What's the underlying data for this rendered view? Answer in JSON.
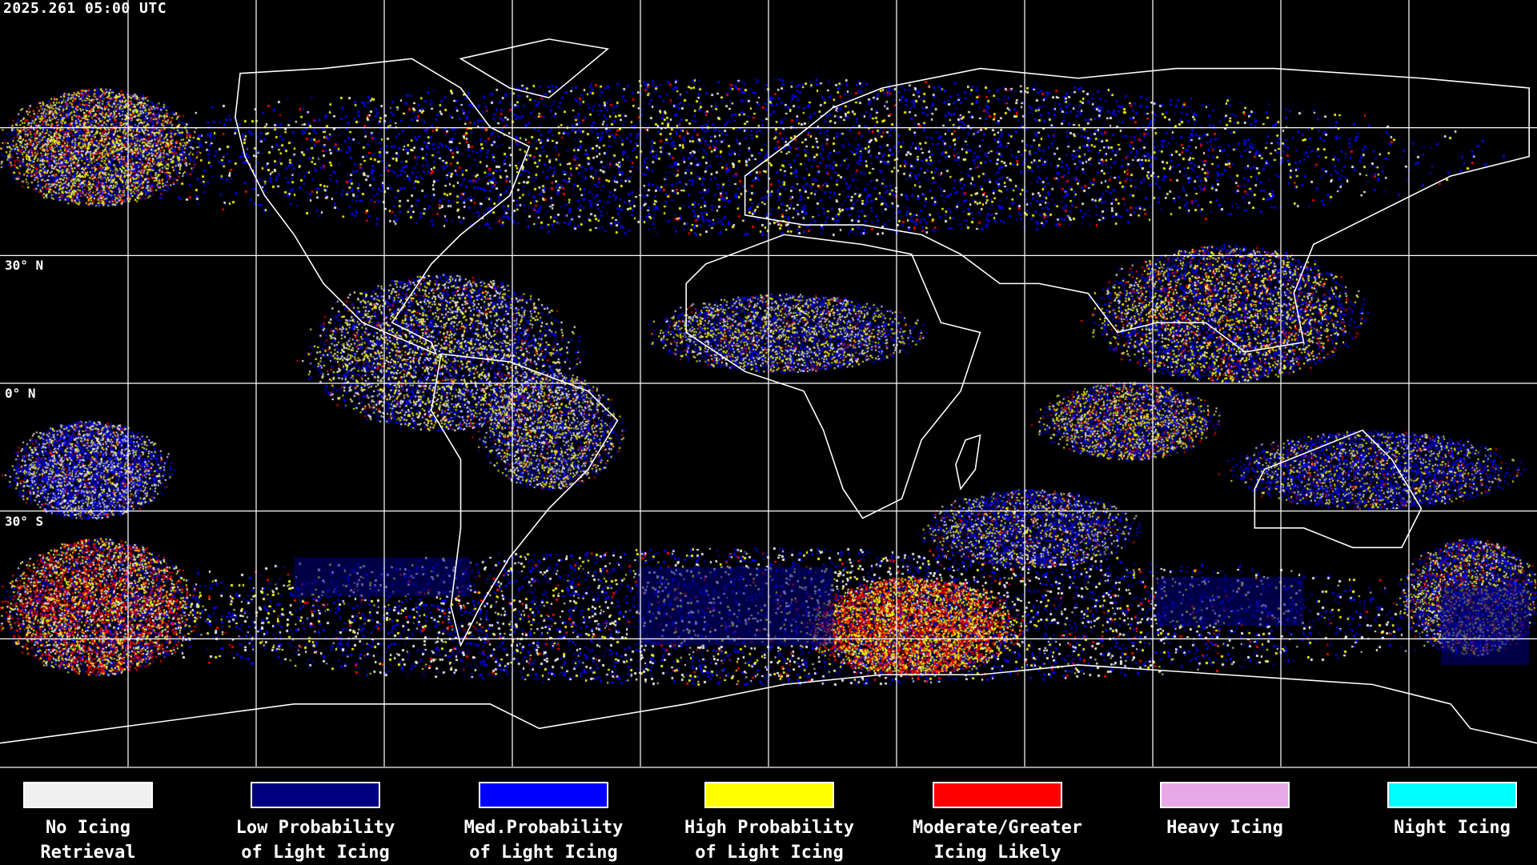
{
  "header": {
    "timestamp": "2025.261 05:00 UTC"
  },
  "map": {
    "projection": "equirectangular",
    "graticule_spacing_deg": 30,
    "lat_labels": [
      "30° N",
      "0° N",
      "30° S"
    ],
    "outline_color": "#ffffff",
    "grid_color": "#ffffff"
  },
  "legend": [
    {
      "line1": "No Icing",
      "line2": "Retrieval",
      "color": "#f0f0f0"
    },
    {
      "line1": "Low Probability",
      "line2": "of Light Icing",
      "color": "#000080"
    },
    {
      "line1": "Med.Probability",
      "line2": "of Light Icing",
      "color": "#0000ff"
    },
    {
      "line1": "High Probability",
      "line2": "of Light Icing",
      "color": "#ffff00"
    },
    {
      "line1": "Moderate/Greater",
      "line2": "Icing Likely",
      "color": "#ff0000"
    },
    {
      "line1": "Heavy Icing",
      "line2": "",
      "color": "#e8a8e8"
    },
    {
      "line1": "Night Icing",
      "line2": "",
      "color": "#00ffff"
    }
  ]
}
